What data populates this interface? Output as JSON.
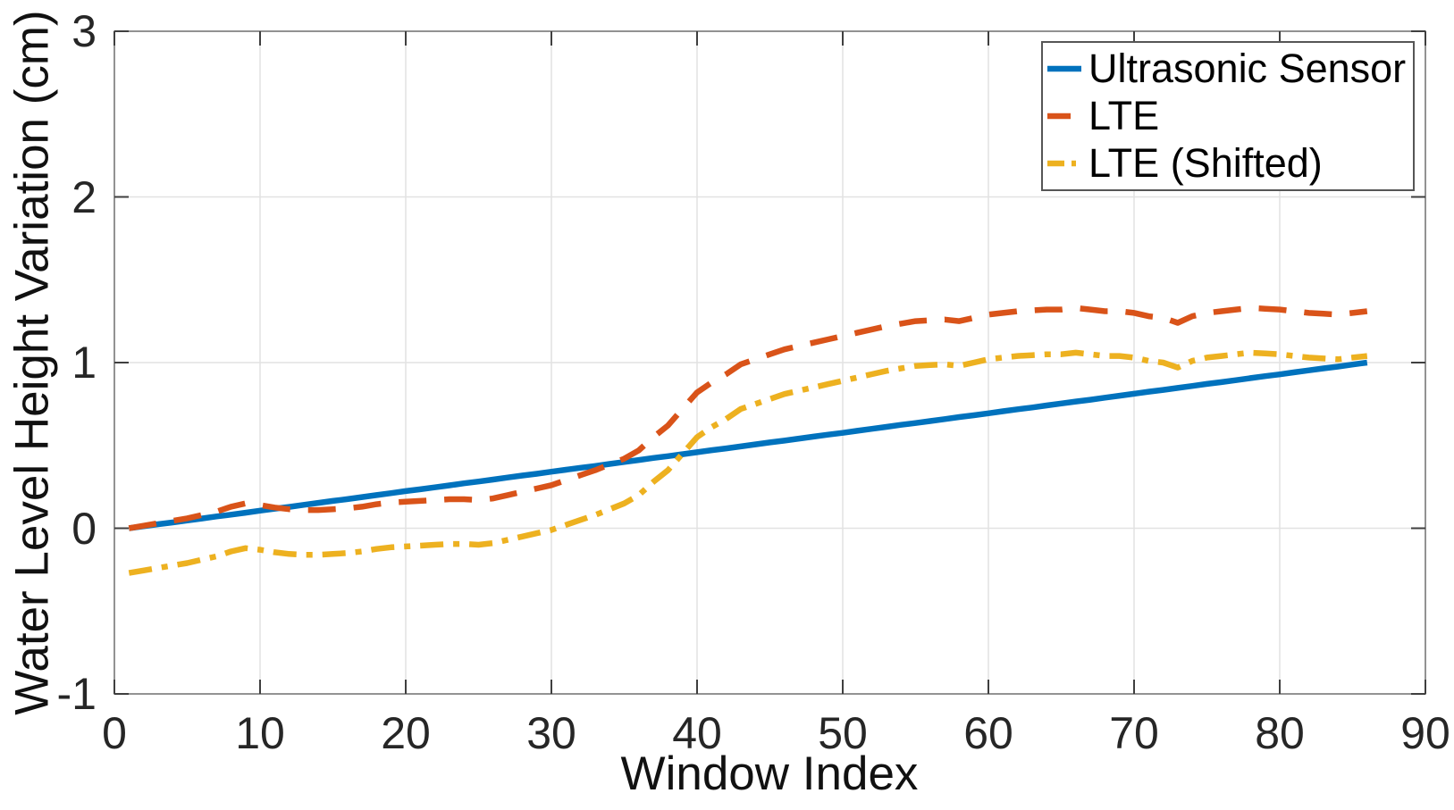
{
  "figure": {
    "background": "#ffffff"
  },
  "chart_data": {
    "type": "line",
    "title": "",
    "xlabel": "Window Index",
    "ylabel": "Water Level Height Variation (cm)",
    "xlim": [
      0,
      90
    ],
    "ylim": [
      -1,
      3
    ],
    "xticks": [
      0,
      10,
      20,
      30,
      40,
      50,
      60,
      70,
      80,
      90
    ],
    "yticks": [
      -1,
      0,
      1,
      2,
      3
    ],
    "grid": true,
    "legend_position": "top-right",
    "x": [
      1,
      2,
      3,
      4,
      5,
      6,
      7,
      8,
      9,
      10,
      11,
      12,
      13,
      14,
      15,
      16,
      17,
      18,
      19,
      20,
      21,
      22,
      23,
      24,
      25,
      26,
      27,
      28,
      29,
      30,
      31,
      32,
      33,
      34,
      35,
      36,
      37,
      38,
      39,
      40,
      41,
      42,
      43,
      44,
      45,
      46,
      47,
      48,
      49,
      50,
      51,
      52,
      53,
      54,
      55,
      56,
      57,
      58,
      59,
      60,
      61,
      62,
      63,
      64,
      65,
      66,
      67,
      68,
      69,
      70,
      71,
      72,
      73,
      74,
      75,
      76,
      77,
      78,
      79,
      80,
      81,
      82,
      83,
      84,
      85,
      86
    ],
    "series": [
      {
        "name": "Ultrasonic Sensor",
        "color": "#0072BD",
        "style": "solid",
        "values": [
          0,
          0.012,
          0.024,
          0.035,
          0.047,
          0.059,
          0.071,
          0.082,
          0.094,
          0.106,
          0.118,
          0.129,
          0.141,
          0.153,
          0.165,
          0.176,
          0.188,
          0.2,
          0.212,
          0.224,
          0.235,
          0.247,
          0.259,
          0.271,
          0.282,
          0.294,
          0.306,
          0.318,
          0.329,
          0.341,
          0.353,
          0.365,
          0.376,
          0.388,
          0.4,
          0.412,
          0.424,
          0.435,
          0.447,
          0.459,
          0.471,
          0.482,
          0.494,
          0.506,
          0.518,
          0.529,
          0.541,
          0.553,
          0.565,
          0.576,
          0.588,
          0.6,
          0.612,
          0.624,
          0.635,
          0.647,
          0.659,
          0.671,
          0.682,
          0.694,
          0.706,
          0.718,
          0.729,
          0.741,
          0.753,
          0.765,
          0.776,
          0.788,
          0.8,
          0.812,
          0.824,
          0.835,
          0.847,
          0.859,
          0.871,
          0.882,
          0.894,
          0.906,
          0.918,
          0.929,
          0.941,
          0.953,
          0.965,
          0.976,
          0.988,
          1.0
        ]
      },
      {
        "name": "LTE",
        "color": "#D95319",
        "style": "dashed",
        "values": [
          0,
          0.015,
          0.03,
          0.045,
          0.06,
          0.08,
          0.1,
          0.13,
          0.15,
          0.14,
          0.125,
          0.115,
          0.11,
          0.11,
          0.115,
          0.12,
          0.13,
          0.145,
          0.155,
          0.16,
          0.165,
          0.17,
          0.175,
          0.175,
          0.17,
          0.18,
          0.2,
          0.22,
          0.24,
          0.26,
          0.29,
          0.32,
          0.35,
          0.385,
          0.42,
          0.47,
          0.55,
          0.62,
          0.72,
          0.82,
          0.88,
          0.93,
          0.99,
          1.02,
          1.05,
          1.08,
          1.1,
          1.12,
          1.14,
          1.16,
          1.18,
          1.2,
          1.22,
          1.235,
          1.25,
          1.255,
          1.26,
          1.25,
          1.27,
          1.29,
          1.3,
          1.31,
          1.315,
          1.32,
          1.32,
          1.33,
          1.32,
          1.31,
          1.31,
          1.3,
          1.28,
          1.27,
          1.24,
          1.28,
          1.3,
          1.31,
          1.32,
          1.33,
          1.325,
          1.32,
          1.31,
          1.3,
          1.295,
          1.29,
          1.3,
          1.31
        ]
      },
      {
        "name": "LTE (Shifted)",
        "color": "#EDB120",
        "style": "dashdot",
        "values": [
          -0.27,
          -0.255,
          -0.24,
          -0.225,
          -0.21,
          -0.19,
          -0.17,
          -0.14,
          -0.12,
          -0.13,
          -0.145,
          -0.155,
          -0.16,
          -0.16,
          -0.155,
          -0.15,
          -0.14,
          -0.125,
          -0.115,
          -0.11,
          -0.105,
          -0.1,
          -0.095,
          -0.095,
          -0.1,
          -0.09,
          -0.07,
          -0.05,
          -0.03,
          -0.01,
          0.02,
          0.05,
          0.08,
          0.115,
          0.15,
          0.2,
          0.28,
          0.35,
          0.45,
          0.55,
          0.61,
          0.66,
          0.72,
          0.75,
          0.78,
          0.81,
          0.83,
          0.85,
          0.87,
          0.89,
          0.91,
          0.93,
          0.95,
          0.965,
          0.98,
          0.985,
          0.99,
          0.98,
          1.0,
          1.02,
          1.03,
          1.04,
          1.045,
          1.05,
          1.05,
          1.06,
          1.05,
          1.04,
          1.04,
          1.03,
          1.01,
          1.0,
          0.97,
          1.01,
          1.03,
          1.04,
          1.05,
          1.06,
          1.055,
          1.05,
          1.04,
          1.03,
          1.025,
          1.02,
          1.03,
          1.04
        ]
      }
    ]
  }
}
